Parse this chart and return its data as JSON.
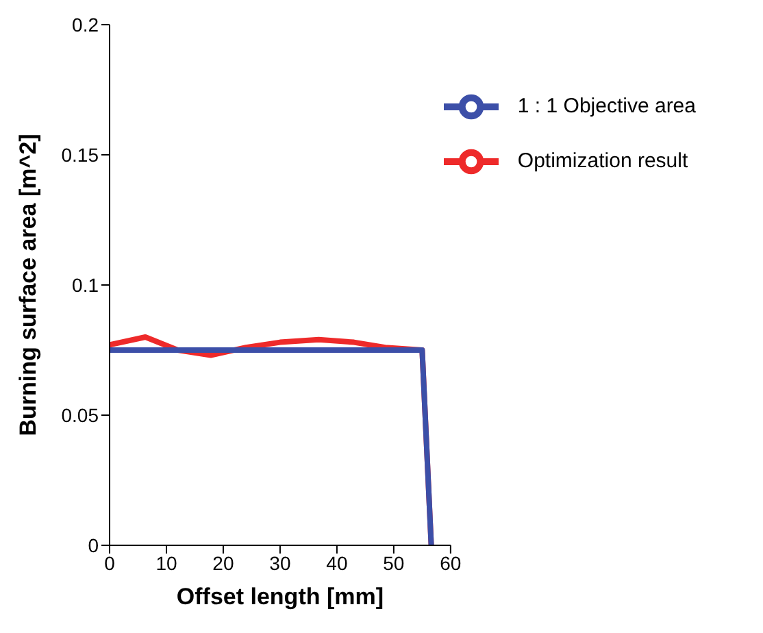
{
  "chart_data": {
    "type": "line",
    "xlabel": "Offset length [mm]",
    "ylabel": "Burning surface area [m^2]",
    "xlim": [
      0,
      60
    ],
    "xticks": [
      0,
      10,
      20,
      30,
      40,
      50,
      60
    ],
    "ylim": [
      0,
      0.2
    ],
    "yticks": [
      0,
      0.05,
      0.1,
      0.15,
      0.2
    ],
    "grid": false,
    "legend": "top right",
    "marker": "none",
    "line_style": "solid",
    "series": [
      {
        "name": "1 : 1 Objective area",
        "color": "#3c4fa8",
        "x": [
          0,
          55,
          56.6
        ],
        "values": [
          0.075,
          0.075,
          0
        ]
      },
      {
        "name": "Optimization result",
        "color": "#ee2a2a",
        "x": [
          0,
          6.3,
          12,
          17.8,
          24,
          30,
          36.8,
          43,
          48.5,
          55,
          56.6
        ],
        "values": [
          0.077,
          0.08,
          0.075,
          0.073,
          0.076,
          0.078,
          0.079,
          0.078,
          0.076,
          0.075,
          0
        ]
      }
    ]
  }
}
